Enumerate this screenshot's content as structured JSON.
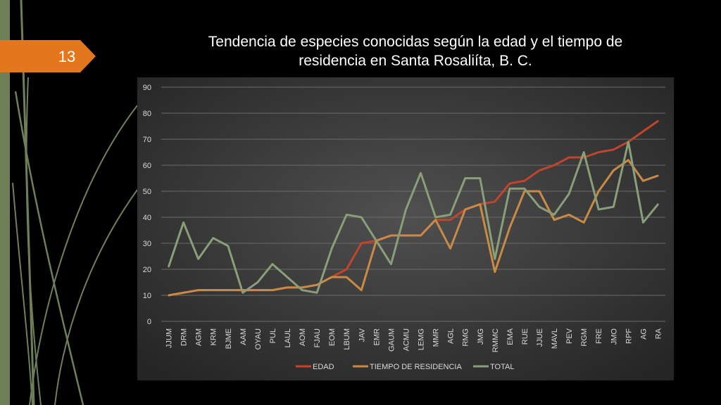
{
  "slide": {
    "number": "13",
    "title_line1": "Tendencia de especies conocidas según la edad y el tiempo de",
    "title_line2": "residencia en Santa Rosaliíta, B. C.",
    "colors": {
      "tab": "#e3771e",
      "accent_bar": "#6f7f58"
    }
  },
  "chart_data": {
    "type": "line",
    "categories": [
      "JJUM",
      "DRM",
      "AGM",
      "KRM",
      "BJME",
      "AAM",
      "OYAU",
      "PUL",
      "LAUL",
      "AOM",
      "FJAU",
      "EOM",
      "LBUM",
      "JAV",
      "EMR",
      "GAUM",
      "ACMU",
      "LEMG",
      "MMR",
      "AGL",
      "RMG",
      "JMG",
      "RMMC",
      "EMA",
      "RUE",
      "JJUE",
      "MAVL",
      "PEV",
      "RGM",
      "FRE",
      "JMO",
      "RPF",
      "AG",
      "RA"
    ],
    "ylim": [
      0,
      90
    ],
    "yticks": [
      "0",
      "10",
      "20",
      "30",
      "40",
      "50",
      "60",
      "70",
      "80",
      "90"
    ],
    "grid": true,
    "legend_position": "bottom",
    "series": [
      {
        "name": "EDAD",
        "color": "#c0452c",
        "values": [
          10,
          11,
          12,
          12,
          12,
          12,
          12,
          12,
          13,
          13,
          14,
          17,
          20,
          30,
          31,
          33,
          33,
          33,
          39,
          39,
          43,
          45,
          46,
          53,
          54,
          58,
          60,
          63,
          63,
          65,
          66,
          69,
          73,
          77
        ]
      },
      {
        "name": "TIEMPO DE RESIDENCIA",
        "color": "#c98a45",
        "values": [
          10,
          11,
          12,
          12,
          12,
          12,
          12,
          12,
          13,
          13,
          14,
          17,
          17,
          12,
          31,
          33,
          33,
          33,
          39,
          28,
          43,
          45,
          19,
          36,
          50,
          50,
          39,
          41,
          38,
          50,
          58,
          62,
          54,
          56
        ]
      },
      {
        "name": "TOTAL",
        "color": "#8a9e78",
        "values": [
          21,
          38,
          24,
          32,
          29,
          11,
          15,
          22,
          17,
          12,
          11,
          28,
          41,
          40,
          31,
          22,
          43,
          57,
          40,
          41,
          55,
          55,
          24,
          51,
          51,
          44,
          41,
          49,
          65,
          43,
          44,
          69,
          38,
          45
        ]
      }
    ]
  }
}
